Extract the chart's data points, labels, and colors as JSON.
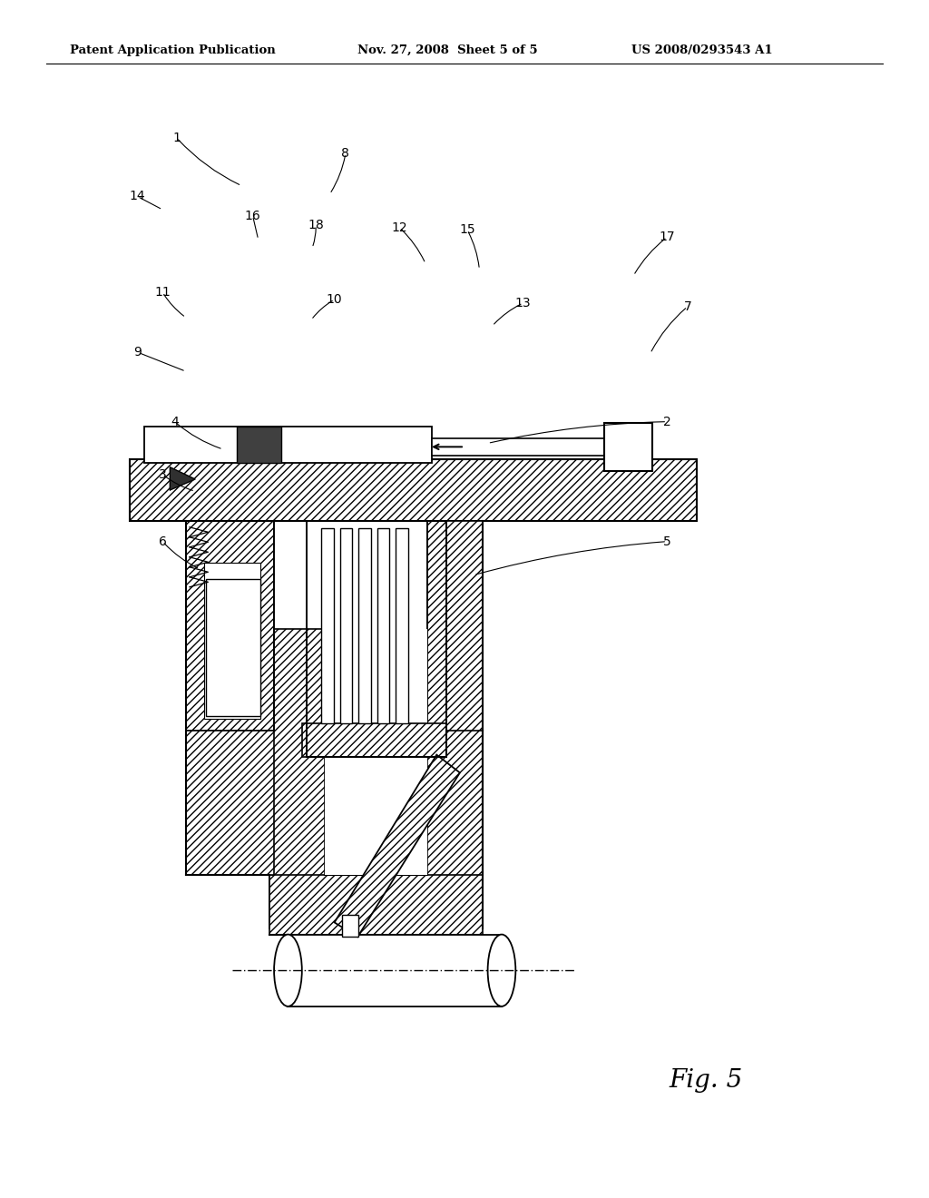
{
  "bg_color": "#ffffff",
  "header_text1": "Patent Application Publication",
  "header_text2": "Nov. 27, 2008  Sheet 5 of 5",
  "header_text3": "US 2008/0293543 A1",
  "fig_label": "Fig. 5"
}
